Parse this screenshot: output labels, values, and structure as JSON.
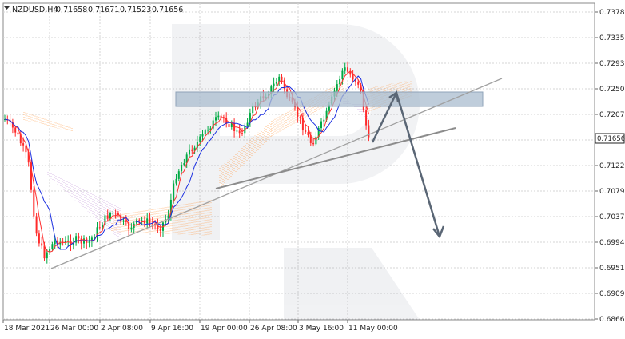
{
  "header": {
    "symbol": "NZDUSD,H4",
    "open": "0.71658",
    "high": "0.71671",
    "low": "0.71523",
    "close": "0.71656"
  },
  "current_price_label": "0.71656",
  "chart_data": {
    "type": "line",
    "title": "",
    "y_ticks": [
      "0.73780",
      "0.73350",
      "0.72930",
      "0.72500",
      "0.72070",
      "0.71650",
      "0.71220",
      "0.70790",
      "0.70370",
      "0.69940",
      "0.69510",
      "0.69090",
      "0.68660"
    ],
    "x_ticks": [
      "18 Mar 2021",
      "26 Mar 00:00",
      "2 Apr 08:00",
      "9 Apr 16:00",
      "19 Apr 00:00",
      "26 Apr 08:00",
      "3 May 16:00",
      "11 May 00:00"
    ],
    "ylim": [
      0.6866,
      0.7378
    ],
    "current_price": 0.71656,
    "grid": true,
    "colors": {
      "price_up": "#00aa44",
      "price_down": "#ff2a2a",
      "tenkan": "#ff3030",
      "kijun": "#1a2ee0",
      "cloud_up": "#ff9d4a",
      "cloud_down": "#c9a0dc",
      "trendline": "#999999",
      "forecast_arrow": "#5a6675",
      "resistance_zone": "#a9bccf"
    }
  }
}
